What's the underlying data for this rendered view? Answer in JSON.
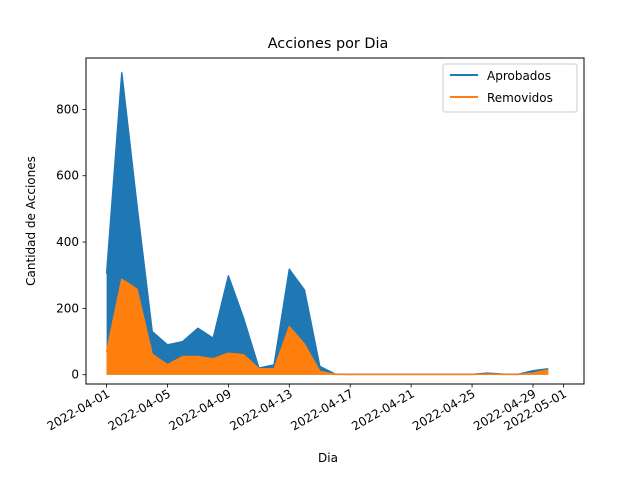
{
  "chart_data": {
    "type": "area",
    "title": "Acciones por Dia",
    "xlabel": "Dia",
    "ylabel": "Cantidad de Acciones",
    "x_range": [
      "2022-04-01",
      "2022-05-01"
    ],
    "ylim": [
      -28,
      955
    ],
    "y_ticks": [
      0,
      200,
      400,
      600,
      800
    ],
    "x_ticks": [
      "2022-04-01",
      "2022-04-05",
      "2022-04-09",
      "2022-04-13",
      "2022-04-17",
      "2022-04-21",
      "2022-04-25",
      "2022-04-29",
      "2022-05-01"
    ],
    "grid": false,
    "legend": "upper right",
    "x": [
      "2022-04-01",
      "2022-04-02",
      "2022-04-03",
      "2022-04-04",
      "2022-04-05",
      "2022-04-06",
      "2022-04-07",
      "2022-04-08",
      "2022-04-09",
      "2022-04-10",
      "2022-04-11",
      "2022-04-12",
      "2022-04-13",
      "2022-04-14",
      "2022-04-15",
      "2022-04-16",
      "2022-04-17",
      "2022-04-18",
      "2022-04-19",
      "2022-04-20",
      "2022-04-21",
      "2022-04-22",
      "2022-04-23",
      "2022-04-24",
      "2022-04-25",
      "2022-04-26",
      "2022-04-27",
      "2022-04-28",
      "2022-04-29",
      "2022-04-30"
    ],
    "series": [
      {
        "name": "Aprobados",
        "color": "#1f77b4",
        "values": [
          305,
          910,
          510,
          130,
          90,
          100,
          140,
          110,
          298,
          170,
          20,
          30,
          318,
          255,
          25,
          2,
          1,
          1,
          1,
          1,
          1,
          1,
          1,
          1,
          1,
          5,
          2,
          1,
          12,
          18
        ]
      },
      {
        "name": "Removidos",
        "color": "#ff7f0e",
        "values": [
          70,
          288,
          258,
          62,
          30,
          55,
          55,
          48,
          65,
          60,
          18,
          18,
          145,
          92,
          10,
          1,
          1,
          1,
          1,
          1,
          1,
          1,
          1,
          1,
          1,
          2,
          1,
          1,
          5,
          15
        ]
      }
    ]
  }
}
